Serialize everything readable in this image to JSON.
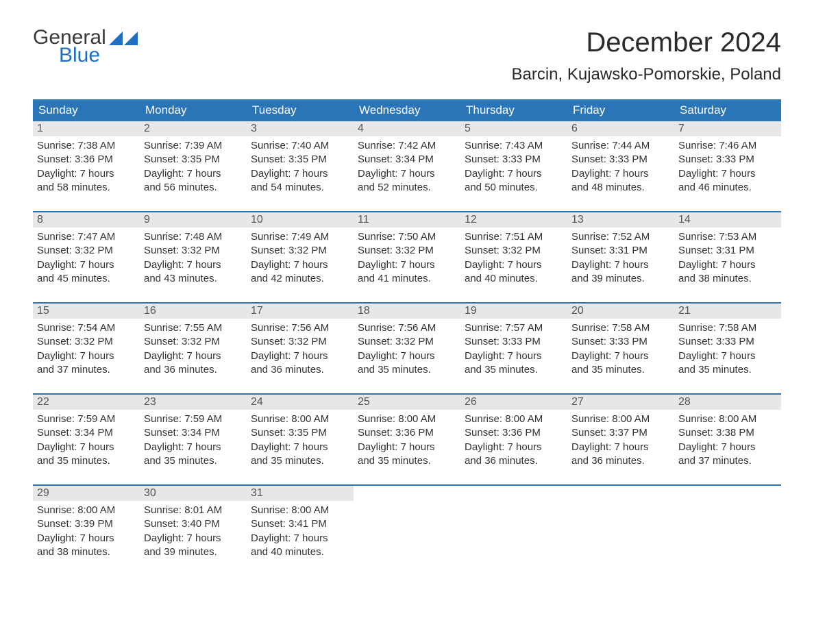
{
  "logo": {
    "text1": "General",
    "text2": "Blue",
    "color_general": "#3a3a3a",
    "color_blue": "#1e6fbf",
    "tri_color": "#1e6fbf"
  },
  "title": "December 2024",
  "location": "Barcin, Kujawsko-Pomorskie, Poland",
  "colors": {
    "header_bg": "#2a74b8",
    "header_text": "#ffffff",
    "daynum_bg": "#e7e7e7",
    "daynum_text": "#555555",
    "body_text": "#333333",
    "week_border": "#2a74b8",
    "page_bg": "#ffffff"
  },
  "typography": {
    "title_fontsize": 40,
    "location_fontsize": 24,
    "header_fontsize": 17,
    "daynum_fontsize": 16,
    "body_fontsize": 15,
    "logo_fontsize": 30
  },
  "daysOfWeek": [
    "Sunday",
    "Monday",
    "Tuesday",
    "Wednesday",
    "Thursday",
    "Friday",
    "Saturday"
  ],
  "weeks": [
    [
      {
        "n": "1",
        "sunrise": "Sunrise: 7:38 AM",
        "sunset": "Sunset: 3:36 PM",
        "d1": "Daylight: 7 hours",
        "d2": "and 58 minutes."
      },
      {
        "n": "2",
        "sunrise": "Sunrise: 7:39 AM",
        "sunset": "Sunset: 3:35 PM",
        "d1": "Daylight: 7 hours",
        "d2": "and 56 minutes."
      },
      {
        "n": "3",
        "sunrise": "Sunrise: 7:40 AM",
        "sunset": "Sunset: 3:35 PM",
        "d1": "Daylight: 7 hours",
        "d2": "and 54 minutes."
      },
      {
        "n": "4",
        "sunrise": "Sunrise: 7:42 AM",
        "sunset": "Sunset: 3:34 PM",
        "d1": "Daylight: 7 hours",
        "d2": "and 52 minutes."
      },
      {
        "n": "5",
        "sunrise": "Sunrise: 7:43 AM",
        "sunset": "Sunset: 3:33 PM",
        "d1": "Daylight: 7 hours",
        "d2": "and 50 minutes."
      },
      {
        "n": "6",
        "sunrise": "Sunrise: 7:44 AM",
        "sunset": "Sunset: 3:33 PM",
        "d1": "Daylight: 7 hours",
        "d2": "and 48 minutes."
      },
      {
        "n": "7",
        "sunrise": "Sunrise: 7:46 AM",
        "sunset": "Sunset: 3:33 PM",
        "d1": "Daylight: 7 hours",
        "d2": "and 46 minutes."
      }
    ],
    [
      {
        "n": "8",
        "sunrise": "Sunrise: 7:47 AM",
        "sunset": "Sunset: 3:32 PM",
        "d1": "Daylight: 7 hours",
        "d2": "and 45 minutes."
      },
      {
        "n": "9",
        "sunrise": "Sunrise: 7:48 AM",
        "sunset": "Sunset: 3:32 PM",
        "d1": "Daylight: 7 hours",
        "d2": "and 43 minutes."
      },
      {
        "n": "10",
        "sunrise": "Sunrise: 7:49 AM",
        "sunset": "Sunset: 3:32 PM",
        "d1": "Daylight: 7 hours",
        "d2": "and 42 minutes."
      },
      {
        "n": "11",
        "sunrise": "Sunrise: 7:50 AM",
        "sunset": "Sunset: 3:32 PM",
        "d1": "Daylight: 7 hours",
        "d2": "and 41 minutes."
      },
      {
        "n": "12",
        "sunrise": "Sunrise: 7:51 AM",
        "sunset": "Sunset: 3:32 PM",
        "d1": "Daylight: 7 hours",
        "d2": "and 40 minutes."
      },
      {
        "n": "13",
        "sunrise": "Sunrise: 7:52 AM",
        "sunset": "Sunset: 3:31 PM",
        "d1": "Daylight: 7 hours",
        "d2": "and 39 minutes."
      },
      {
        "n": "14",
        "sunrise": "Sunrise: 7:53 AM",
        "sunset": "Sunset: 3:31 PM",
        "d1": "Daylight: 7 hours",
        "d2": "and 38 minutes."
      }
    ],
    [
      {
        "n": "15",
        "sunrise": "Sunrise: 7:54 AM",
        "sunset": "Sunset: 3:32 PM",
        "d1": "Daylight: 7 hours",
        "d2": "and 37 minutes."
      },
      {
        "n": "16",
        "sunrise": "Sunrise: 7:55 AM",
        "sunset": "Sunset: 3:32 PM",
        "d1": "Daylight: 7 hours",
        "d2": "and 36 minutes."
      },
      {
        "n": "17",
        "sunrise": "Sunrise: 7:56 AM",
        "sunset": "Sunset: 3:32 PM",
        "d1": "Daylight: 7 hours",
        "d2": "and 36 minutes."
      },
      {
        "n": "18",
        "sunrise": "Sunrise: 7:56 AM",
        "sunset": "Sunset: 3:32 PM",
        "d1": "Daylight: 7 hours",
        "d2": "and 35 minutes."
      },
      {
        "n": "19",
        "sunrise": "Sunrise: 7:57 AM",
        "sunset": "Sunset: 3:33 PM",
        "d1": "Daylight: 7 hours",
        "d2": "and 35 minutes."
      },
      {
        "n": "20",
        "sunrise": "Sunrise: 7:58 AM",
        "sunset": "Sunset: 3:33 PM",
        "d1": "Daylight: 7 hours",
        "d2": "and 35 minutes."
      },
      {
        "n": "21",
        "sunrise": "Sunrise: 7:58 AM",
        "sunset": "Sunset: 3:33 PM",
        "d1": "Daylight: 7 hours",
        "d2": "and 35 minutes."
      }
    ],
    [
      {
        "n": "22",
        "sunrise": "Sunrise: 7:59 AM",
        "sunset": "Sunset: 3:34 PM",
        "d1": "Daylight: 7 hours",
        "d2": "and 35 minutes."
      },
      {
        "n": "23",
        "sunrise": "Sunrise: 7:59 AM",
        "sunset": "Sunset: 3:34 PM",
        "d1": "Daylight: 7 hours",
        "d2": "and 35 minutes."
      },
      {
        "n": "24",
        "sunrise": "Sunrise: 8:00 AM",
        "sunset": "Sunset: 3:35 PM",
        "d1": "Daylight: 7 hours",
        "d2": "and 35 minutes."
      },
      {
        "n": "25",
        "sunrise": "Sunrise: 8:00 AM",
        "sunset": "Sunset: 3:36 PM",
        "d1": "Daylight: 7 hours",
        "d2": "and 35 minutes."
      },
      {
        "n": "26",
        "sunrise": "Sunrise: 8:00 AM",
        "sunset": "Sunset: 3:36 PM",
        "d1": "Daylight: 7 hours",
        "d2": "and 36 minutes."
      },
      {
        "n": "27",
        "sunrise": "Sunrise: 8:00 AM",
        "sunset": "Sunset: 3:37 PM",
        "d1": "Daylight: 7 hours",
        "d2": "and 36 minutes."
      },
      {
        "n": "28",
        "sunrise": "Sunrise: 8:00 AM",
        "sunset": "Sunset: 3:38 PM",
        "d1": "Daylight: 7 hours",
        "d2": "and 37 minutes."
      }
    ],
    [
      {
        "n": "29",
        "sunrise": "Sunrise: 8:00 AM",
        "sunset": "Sunset: 3:39 PM",
        "d1": "Daylight: 7 hours",
        "d2": "and 38 minutes."
      },
      {
        "n": "30",
        "sunrise": "Sunrise: 8:01 AM",
        "sunset": "Sunset: 3:40 PM",
        "d1": "Daylight: 7 hours",
        "d2": "and 39 minutes."
      },
      {
        "n": "31",
        "sunrise": "Sunrise: 8:00 AM",
        "sunset": "Sunset: 3:41 PM",
        "d1": "Daylight: 7 hours",
        "d2": "and 40 minutes."
      },
      {
        "empty": true
      },
      {
        "empty": true
      },
      {
        "empty": true
      },
      {
        "empty": true
      }
    ]
  ]
}
